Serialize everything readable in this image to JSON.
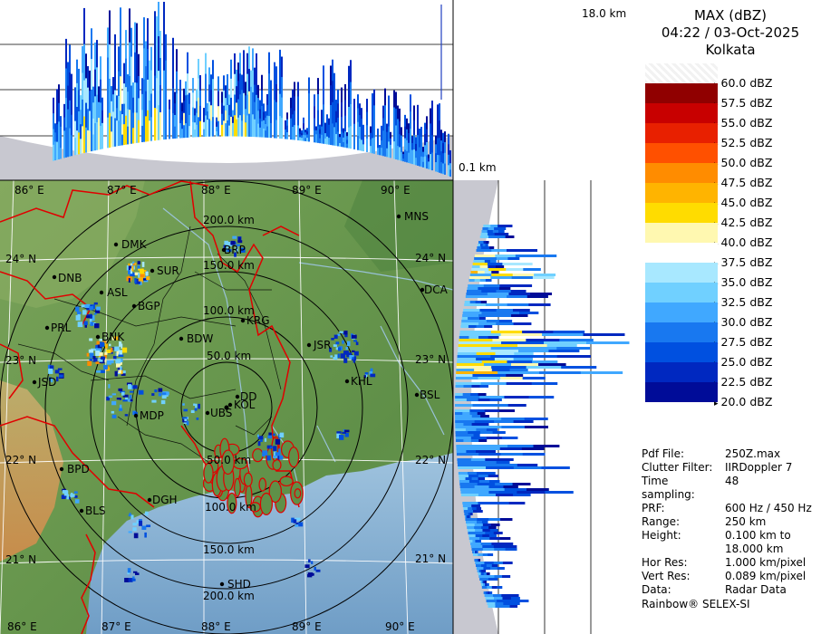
{
  "header": {
    "product": "MAX (dBZ)",
    "datetime": "04:22 / 03-Oct-2025",
    "station": "Kolkata"
  },
  "cross_section": {
    "top_height_label": "18.0 km",
    "bottom_height_label": "0.1 km"
  },
  "legend": {
    "unit": "dBZ",
    "levels": [
      {
        "label": "60.0 dBZ",
        "color": "#ffffff"
      },
      {
        "label": "57.5 dBZ",
        "color": "#900000"
      },
      {
        "label": "55.0 dBZ",
        "color": "#c80000"
      },
      {
        "label": "52.5 dBZ",
        "color": "#e82000"
      },
      {
        "label": "50.0 dBZ",
        "color": "#ff5000"
      },
      {
        "label": "47.5 dBZ",
        "color": "#ff8c00"
      },
      {
        "label": "45.0 dBZ",
        "color": "#ffb400"
      },
      {
        "label": "42.5 dBZ",
        "color": "#ffdc00"
      },
      {
        "label": "40.0 dBZ",
        "color": "#fff8b0"
      },
      {
        "label": "37.5 dBZ",
        "color": "#ffffff"
      },
      {
        "label": "35.0 dBZ",
        "color": "#a8e8ff"
      },
      {
        "label": "32.5 dBZ",
        "color": "#70d0ff"
      },
      {
        "label": "30.0 dBZ",
        "color": "#40a8ff"
      },
      {
        "label": "27.5 dBZ",
        "color": "#1878f0"
      },
      {
        "label": "25.0 dBZ",
        "color": "#0050e0"
      },
      {
        "label": "22.5 dBZ",
        "color": "#0028c0"
      },
      {
        "label": "20.0 dBZ",
        "color": "#000c98"
      }
    ]
  },
  "info": [
    {
      "key": "Pdf File:",
      "value": "250Z.max"
    },
    {
      "key": "Clutter Filter:",
      "value": "IIRDoppler 7"
    },
    {
      "key": "Time sampling:",
      "value": "48"
    },
    {
      "key": "PRF:",
      "value": "600 Hz / 450 Hz"
    },
    {
      "key": "Range:",
      "value": "250 km"
    },
    {
      "key": "Height:",
      "value": "0.100 km to\n18.000 km"
    },
    {
      "key": "Hor Res:",
      "value": "1.000 km/pixel"
    },
    {
      "key": "Vert Res:",
      "value": "0.089 km/pixel"
    },
    {
      "key": "Data:",
      "value": "Radar Data"
    }
  ],
  "credit": "Rainbow® SELEX-SI",
  "map": {
    "lon_labels": [
      "86° E",
      "87° E",
      "88° E",
      "89° E",
      "90° E"
    ],
    "lat_labels": [
      "24° N",
      "23° N",
      "22° N",
      "21° N"
    ],
    "range_rings": [
      "50.0 km",
      "100.0 km",
      "150.0 km",
      "200.0 km"
    ],
    "cities": [
      "MNS",
      "DMK",
      "BRP",
      "DNB",
      "SUR",
      "ASL",
      "BGP",
      "DCA",
      "KRG",
      "PRL",
      "BNK",
      "BDW",
      "JSR",
      "KHL",
      "JSD",
      "DD",
      "KOL",
      "BSL",
      "MDP",
      "UBS",
      "BPD",
      "DGH",
      "BLS",
      "SHD"
    ]
  }
}
